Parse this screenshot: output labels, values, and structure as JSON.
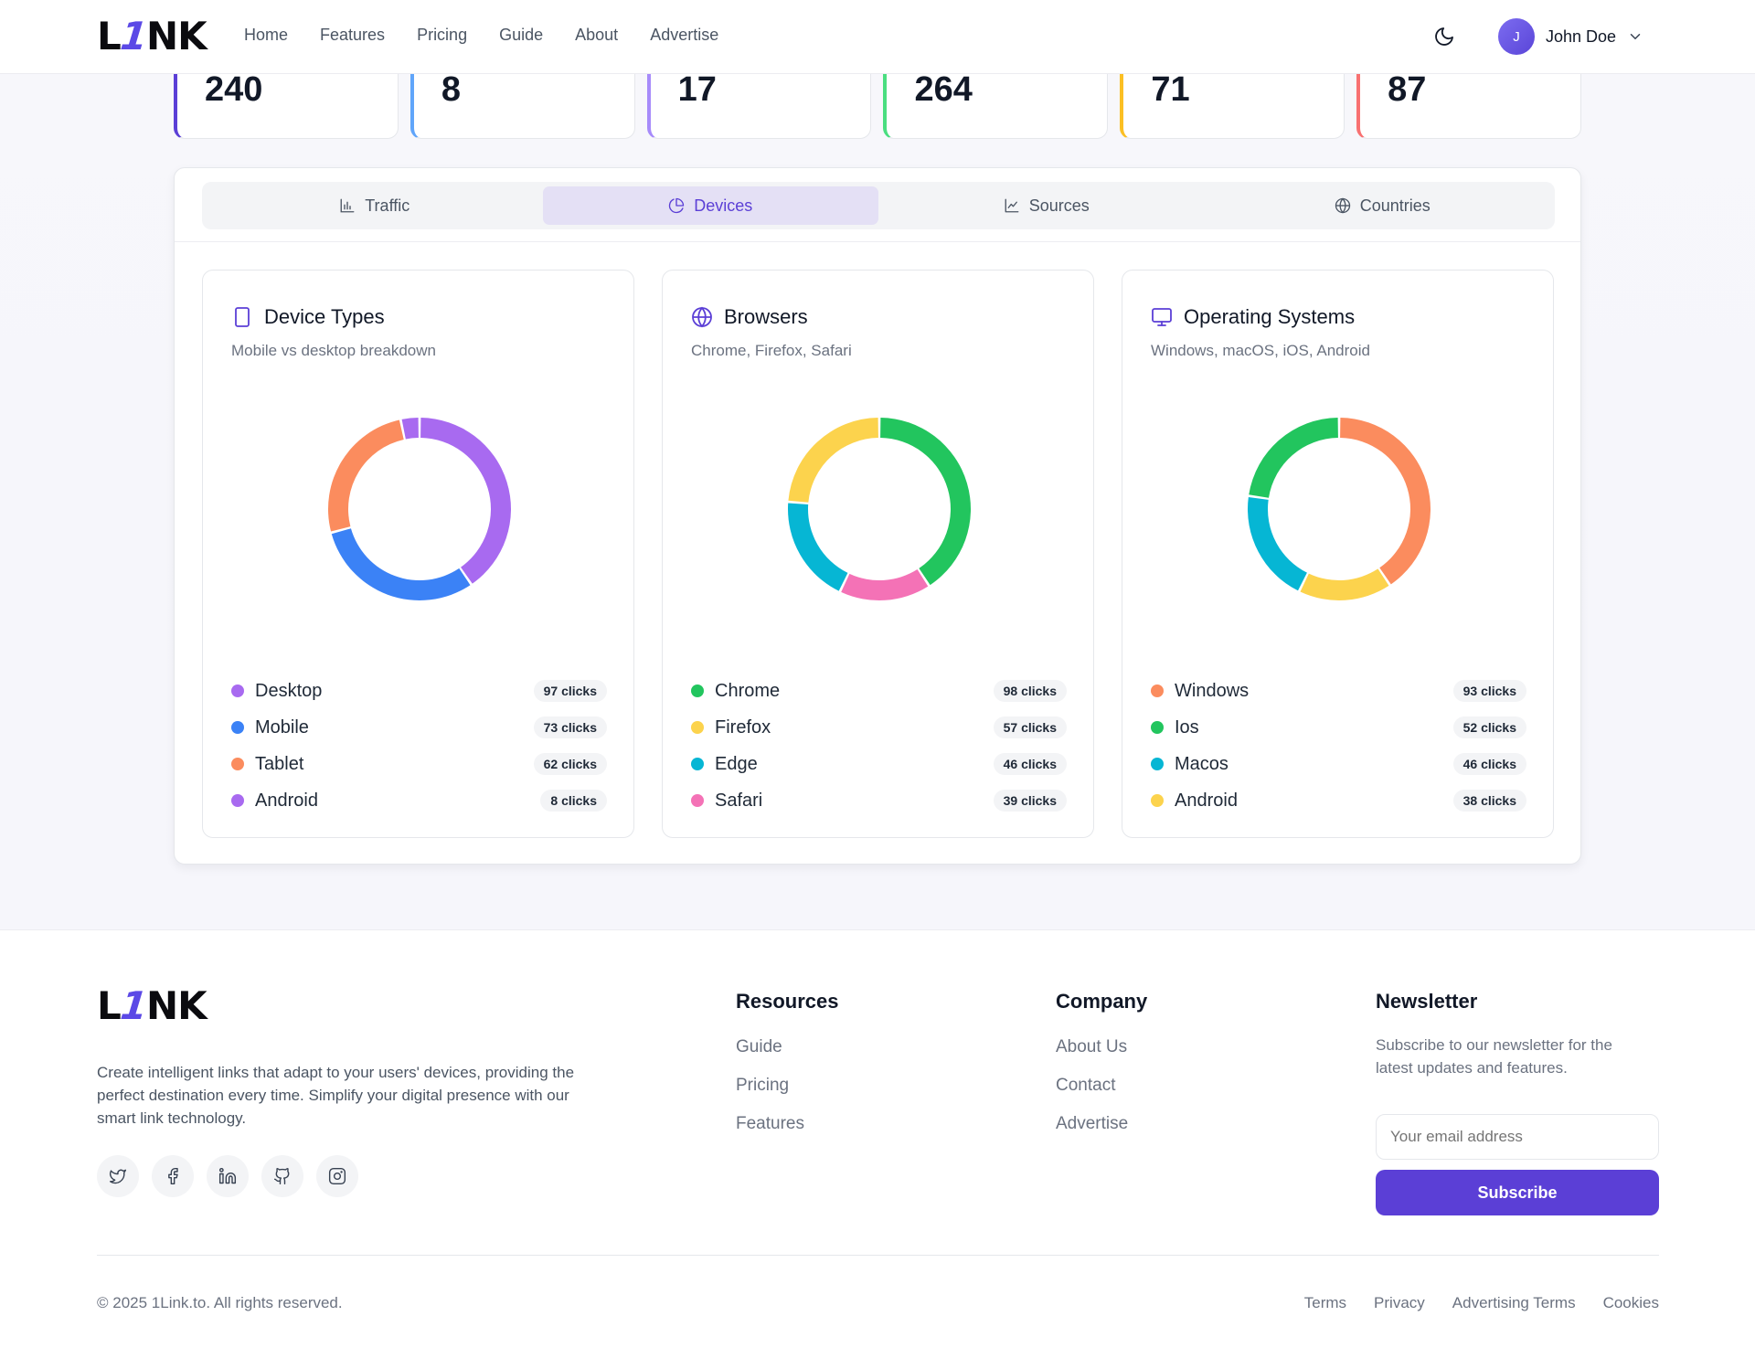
{
  "nav": {
    "logo": {
      "pre": "L",
      "one": "1",
      "post": "NK"
    },
    "links": [
      "Home",
      "Features",
      "Pricing",
      "Guide",
      "About",
      "Advertise"
    ],
    "user": {
      "initial": "J",
      "name": "John Doe"
    }
  },
  "stats": [
    {
      "value": "240",
      "color": "#5b3fd6"
    },
    {
      "value": "8",
      "color": "#60a5fa"
    },
    {
      "value": "17",
      "color": "#a78bfa"
    },
    {
      "value": "264",
      "color": "#4ade80"
    },
    {
      "value": "71",
      "color": "#fbbf24"
    },
    {
      "value": "87",
      "color": "#f87171"
    }
  ],
  "tabs": [
    {
      "label": "Traffic",
      "icon": "bar-chart-icon",
      "active": false
    },
    {
      "label": "Devices",
      "icon": "pie-chart-icon",
      "active": true
    },
    {
      "label": "Sources",
      "icon": "line-chart-icon",
      "active": false
    },
    {
      "label": "Countries",
      "icon": "globe-icon",
      "active": false
    }
  ],
  "cards": [
    {
      "title": "Device Types",
      "icon": "tablet-icon",
      "subtitle": "Mobile vs desktop breakdown",
      "chart_data": {
        "type": "pie",
        "series": [
          {
            "name": "Desktop",
            "value": 97,
            "color": "#a86af0"
          },
          {
            "name": "Mobile",
            "value": 73,
            "color": "#3b82f6"
          },
          {
            "name": "Tablet",
            "value": 62,
            "color": "#fb8c5e"
          },
          {
            "name": "Android",
            "value": 8,
            "color": "#a86af0"
          }
        ]
      },
      "legend": [
        {
          "name": "Desktop",
          "count": "97 clicks",
          "color": "#a86af0"
        },
        {
          "name": "Mobile",
          "count": "73 clicks",
          "color": "#3b82f6"
        },
        {
          "name": "Tablet",
          "count": "62 clicks",
          "color": "#fb8c5e"
        },
        {
          "name": "Android",
          "count": "8 clicks",
          "color": "#a86af0"
        }
      ]
    },
    {
      "title": "Browsers",
      "icon": "globe-icon",
      "subtitle": "Chrome, Firefox, Safari",
      "chart_data": {
        "type": "pie",
        "series": [
          {
            "name": "Chrome",
            "value": 98,
            "color": "#22c55e"
          },
          {
            "name": "Safari",
            "value": 39,
            "color": "#f472b6"
          },
          {
            "name": "Edge",
            "value": 46,
            "color": "#06b6d4"
          },
          {
            "name": "Firefox",
            "value": 57,
            "color": "#fcd34d"
          }
        ]
      },
      "legend": [
        {
          "name": "Chrome",
          "count": "98 clicks",
          "color": "#22c55e"
        },
        {
          "name": "Firefox",
          "count": "57 clicks",
          "color": "#fcd34d"
        },
        {
          "name": "Edge",
          "count": "46 clicks",
          "color": "#06b6d4"
        },
        {
          "name": "Safari",
          "count": "39 clicks",
          "color": "#f472b6"
        }
      ]
    },
    {
      "title": "Operating Systems",
      "icon": "monitor-icon",
      "subtitle": "Windows, macOS, iOS, Android",
      "chart_data": {
        "type": "pie",
        "series": [
          {
            "name": "Windows",
            "value": 93,
            "color": "#fb8c5e"
          },
          {
            "name": "Android",
            "value": 38,
            "color": "#fcd34d"
          },
          {
            "name": "Macos",
            "value": 46,
            "color": "#06b6d4"
          },
          {
            "name": "Ios",
            "value": 52,
            "color": "#22c55e"
          }
        ]
      },
      "legend": [
        {
          "name": "Windows",
          "count": "93 clicks",
          "color": "#fb8c5e"
        },
        {
          "name": "Ios",
          "count": "52 clicks",
          "color": "#22c55e"
        },
        {
          "name": "Macos",
          "count": "46 clicks",
          "color": "#06b6d4"
        },
        {
          "name": "Android",
          "count": "38 clicks",
          "color": "#fcd34d"
        }
      ]
    }
  ],
  "footer": {
    "description": "Create intelligent links that adapt to your users' devices, providing the perfect destination every time. Simplify your digital presence with our smart link technology.",
    "socials": [
      "twitter-icon",
      "facebook-icon",
      "linkedin-icon",
      "github-icon",
      "instagram-icon"
    ],
    "resources": {
      "heading": "Resources",
      "links": [
        "Guide",
        "Pricing",
        "Features"
      ]
    },
    "company": {
      "heading": "Company",
      "links": [
        "About Us",
        "Contact",
        "Advertise"
      ]
    },
    "newsletter": {
      "heading": "Newsletter",
      "text": "Subscribe to our newsletter for the latest updates and features.",
      "placeholder": "Your email address",
      "button": "Subscribe"
    },
    "copyright": "© 2025 1Link.to. All rights reserved.",
    "legal": [
      "Terms",
      "Privacy",
      "Advertising Terms",
      "Cookies"
    ]
  }
}
